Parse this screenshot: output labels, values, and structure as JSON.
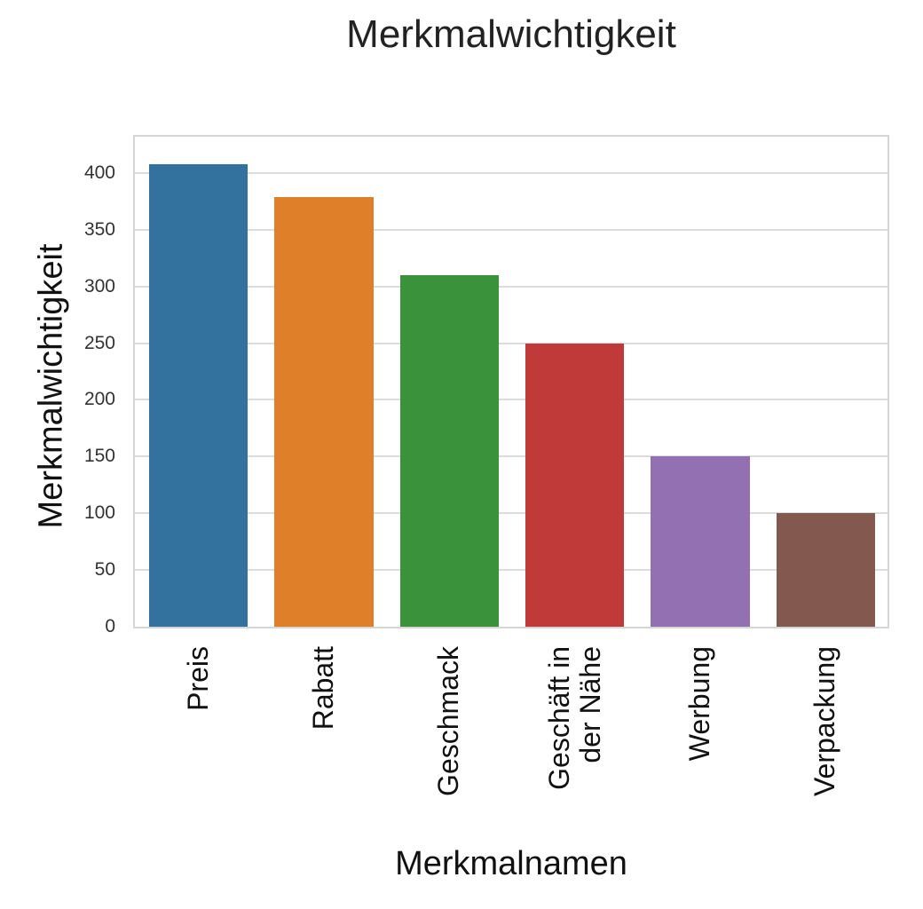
{
  "chart_data": {
    "type": "bar",
    "title": "Merkmalwichtigkeit",
    "xlabel": "Merkmalnamen",
    "ylabel": "Merkmalwichtigkeit",
    "categories": [
      "Preis",
      "Rabatt",
      "Geschmack",
      "Geschäft in der Nähe",
      "Werbung",
      "Verpackung"
    ],
    "values": [
      408,
      379,
      310,
      250,
      150,
      100
    ],
    "colors": [
      "#33719e",
      "#e07f2a",
      "#3a923a",
      "#c03a3a",
      "#9370b2",
      "#82584f"
    ],
    "ylim": [
      0,
      432
    ],
    "yticks": [
      0,
      50,
      100,
      150,
      200,
      250,
      300,
      350,
      400
    ],
    "grid": true,
    "legend": null
  },
  "labels": {
    "title": "Merkmalwichtigkeit",
    "xlabel": "Merkmalnamen",
    "ylabel": "Merkmalwichtigkeit",
    "xticks": [
      "Preis",
      "Rabatt",
      "Geschmack",
      "Geschäft in\nder Nähe",
      "Werbung",
      "Verpackung"
    ]
  }
}
